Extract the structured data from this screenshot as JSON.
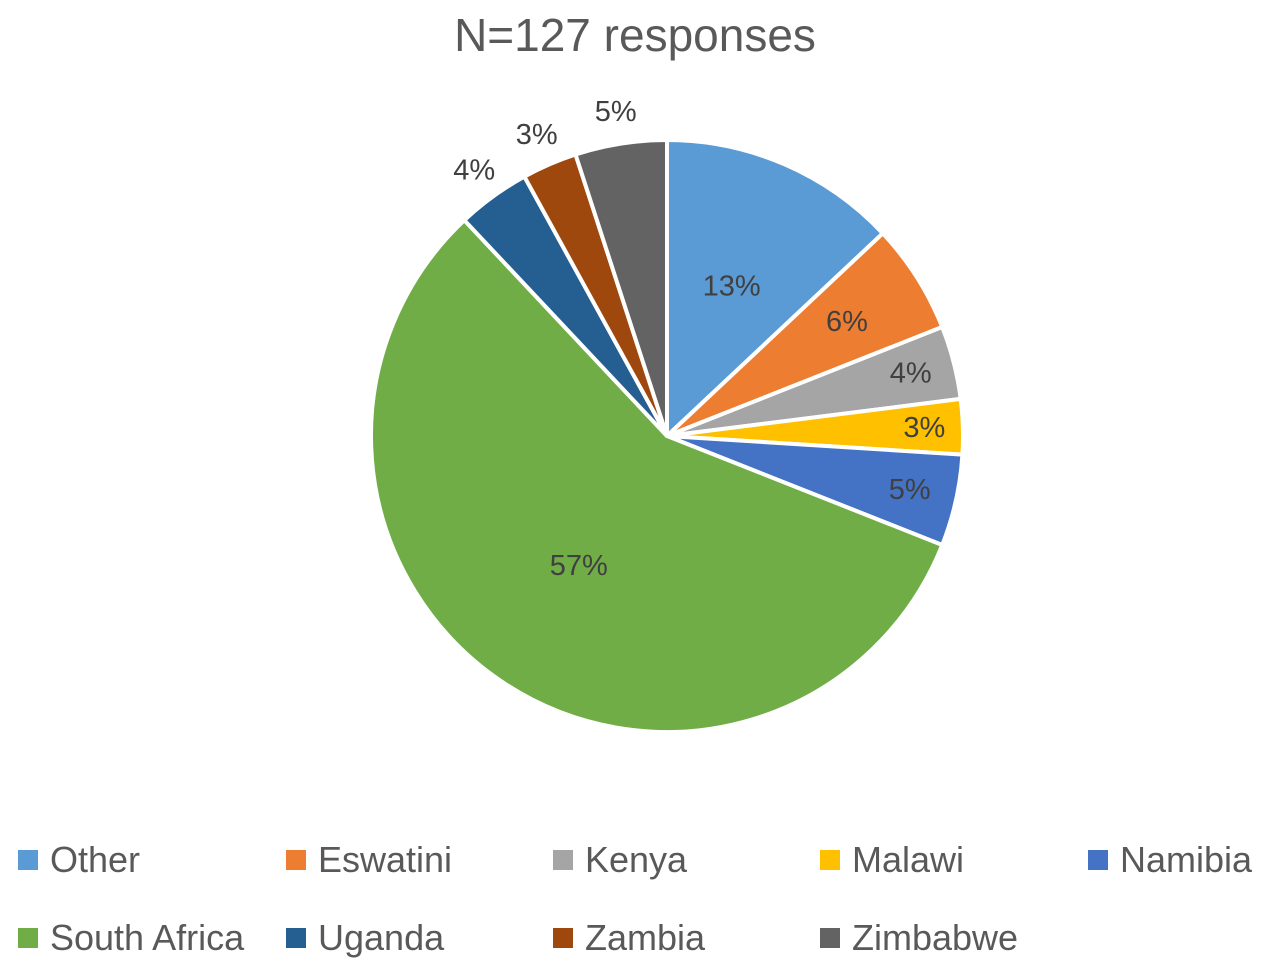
{
  "chart_data": {
    "type": "pie",
    "title": "N=127 responses",
    "slices": [
      {
        "label": "Other",
        "value": 13,
        "display": "13%",
        "color": "#5B9BD5"
      },
      {
        "label": "Eswatini",
        "value": 6,
        "display": "6%",
        "color": "#ED7D31"
      },
      {
        "label": "Kenya",
        "value": 4,
        "display": "4%",
        "color": "#A5A5A5"
      },
      {
        "label": "Malawi",
        "value": 3,
        "display": "3%",
        "color": "#FFC000"
      },
      {
        "label": "Namibia",
        "value": 5,
        "display": "5%",
        "color": "#4472C4"
      },
      {
        "label": "South Africa",
        "value": 57,
        "display": "57%",
        "color": "#70AD47"
      },
      {
        "label": "Uganda",
        "value": 4,
        "display": "4%",
        "color": "#255E91"
      },
      {
        "label": "Zambia",
        "value": 3,
        "display": "3%",
        "color": "#9E480E"
      },
      {
        "label": "Zimbabwe",
        "value": 5,
        "display": "5%",
        "color": "#636363"
      }
    ],
    "legend_position": "bottom"
  }
}
